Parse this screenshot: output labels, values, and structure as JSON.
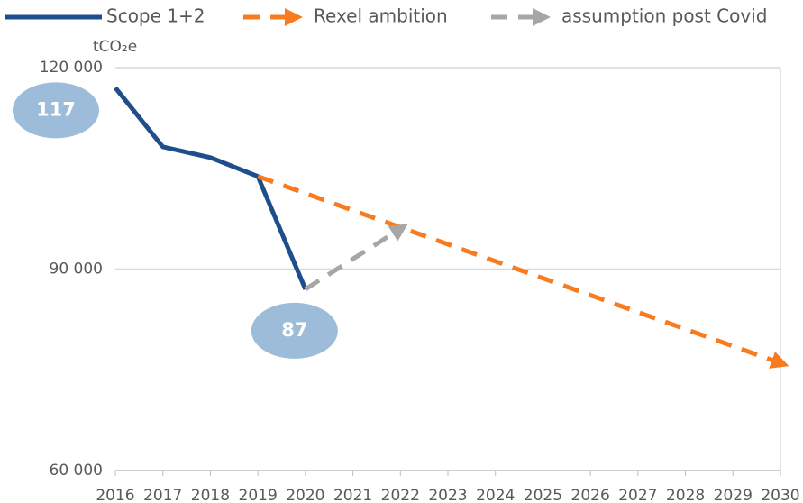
{
  "chart_data": {
    "type": "line",
    "y_label": "tCO₂e",
    "xlim": [
      2016,
      2030
    ],
    "xticks": [
      2016,
      2017,
      2018,
      2019,
      2020,
      2021,
      2022,
      2023,
      2024,
      2025,
      2026,
      2027,
      2028,
      2029,
      2030
    ],
    "ylim": [
      60000,
      120000
    ],
    "yticks": [
      {
        "value": 60000,
        "label": "60 000"
      },
      {
        "value": 90000,
        "label": "90 000"
      },
      {
        "value": 120000,
        "label": "120 000"
      }
    ],
    "grid": true,
    "series": [
      {
        "name": "Scope 1+2",
        "color": "#1f4e8c",
        "style": "solid",
        "x": [
          2016,
          2017,
          2018,
          2019,
          2020
        ],
        "values": [
          117000,
          108200,
          106600,
          103800,
          87000
        ],
        "value_labels": [
          "117",
          null,
          null,
          null,
          "87"
        ]
      },
      {
        "name": "Rexel ambition",
        "color": "#f97b1f",
        "style": "dashed",
        "x": [
          2019,
          2030
        ],
        "values": [
          103800,
          76000
        ]
      },
      {
        "name": "assumption post Covid",
        "color": "#a6a6a6",
        "style": "dashed",
        "x": [
          2020,
          2022
        ],
        "values": [
          87000,
          96000
        ]
      }
    ]
  }
}
